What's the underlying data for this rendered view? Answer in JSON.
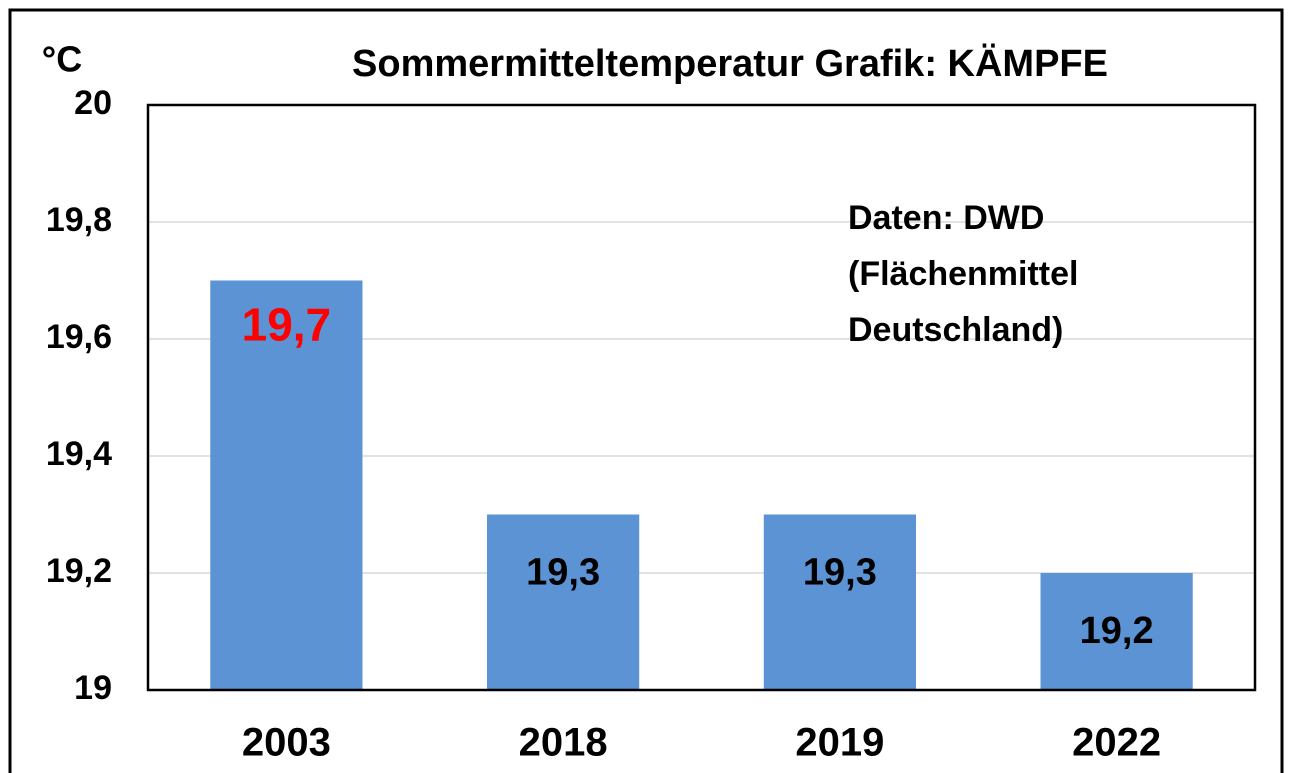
{
  "chart_data": {
    "type": "bar",
    "title": "Sommermitteltemperatur Grafik: KÄMPFE",
    "y_label": "°C",
    "annotation": [
      "Daten: DWD",
      "(Flächenmittel",
      "Deutschland)"
    ],
    "categories": [
      "2003",
      "2018",
      "2019",
      "2022"
    ],
    "values": [
      19.7,
      19.3,
      19.3,
      19.2
    ],
    "value_labels": [
      "19,7",
      "19,3",
      "19,3",
      "19,2"
    ],
    "label_colors": [
      "#ff0000",
      "#000000",
      "#000000",
      "#000000"
    ],
    "color": "#5b93d5",
    "ylim": [
      19,
      20
    ],
    "yticks": [
      19,
      {
        "value": 19.2,
        "label": "19,2"
      },
      {
        "value": 19.4,
        "label": "19,4"
      },
      {
        "value": 19.6,
        "label": "19,6"
      },
      {
        "value": 19.8,
        "label": "19,8"
      },
      20
    ],
    "grid": true
  }
}
